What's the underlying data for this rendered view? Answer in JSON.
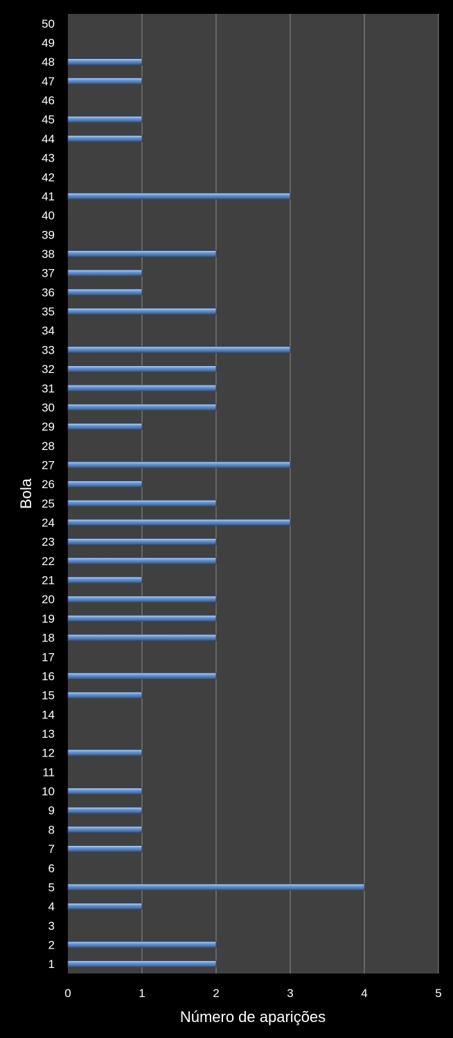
{
  "colors": {
    "background": "#000000",
    "plot_area": "#404040",
    "gridline": "#8c8c8c",
    "bar_fill": "#4f81bd",
    "text": "#ffffff"
  },
  "chart_data": {
    "type": "bar",
    "orientation": "horizontal",
    "xlabel": "Número de aparições",
    "ylabel": "Bola",
    "xlim": [
      0,
      5
    ],
    "x_ticks": [
      0,
      1,
      2,
      3,
      4,
      5
    ],
    "grid": true,
    "legend": "none",
    "categories": [
      "1",
      "2",
      "3",
      "4",
      "5",
      "6",
      "7",
      "8",
      "9",
      "10",
      "11",
      "12",
      "13",
      "14",
      "15",
      "16",
      "17",
      "18",
      "19",
      "20",
      "21",
      "22",
      "23",
      "24",
      "25",
      "26",
      "27",
      "28",
      "29",
      "30",
      "31",
      "32",
      "33",
      "34",
      "35",
      "36",
      "37",
      "38",
      "39",
      "40",
      "41",
      "42",
      "43",
      "44",
      "45",
      "46",
      "47",
      "48",
      "49",
      "50"
    ],
    "values": [
      2,
      2,
      0,
      1,
      4,
      0,
      1,
      1,
      1,
      1,
      0,
      1,
      0,
      0,
      1,
      2,
      0,
      2,
      2,
      2,
      1,
      2,
      2,
      3,
      2,
      1,
      3,
      0,
      1,
      2,
      2,
      2,
      3,
      0,
      2,
      1,
      1,
      2,
      0,
      0,
      3,
      0,
      0,
      1,
      1,
      0,
      1,
      1,
      0,
      0
    ]
  }
}
